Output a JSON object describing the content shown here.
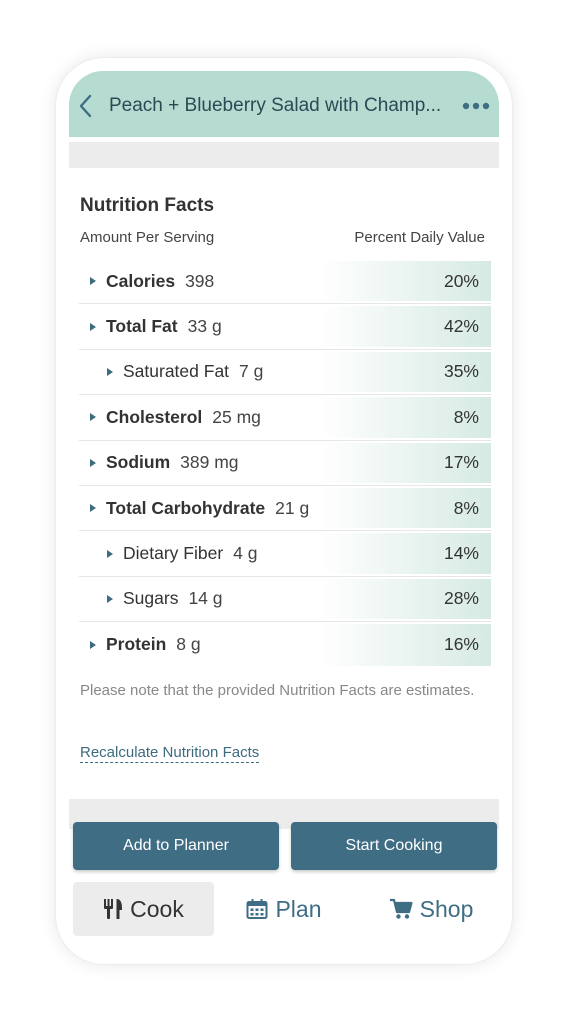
{
  "header": {
    "title": "Peach + Blueberry Salad with Champ...",
    "icons": {
      "back": "chevron-left-icon",
      "more": "more-horizontal-icon"
    }
  },
  "nutrition": {
    "title": "Nutrition Facts",
    "col_left": "Amount Per Serving",
    "col_right": "Percent Daily Value",
    "rows": [
      {
        "label": "Calories",
        "amount": "398",
        "pct": "20%"
      },
      {
        "label": "Total Fat",
        "amount": "33 g",
        "pct": "42%"
      },
      {
        "label": "Saturated Fat",
        "amount": "7 g",
        "pct": "35%"
      },
      {
        "label": "Cholesterol",
        "amount": "25 mg",
        "pct": "8%"
      },
      {
        "label": "Sodium",
        "amount": "389 mg",
        "pct": "17%"
      },
      {
        "label": "Total Carbohydrate",
        "amount": "21 g",
        "pct": "8%"
      },
      {
        "label": "Dietary Fiber",
        "amount": "4 g",
        "pct": "14%"
      },
      {
        "label": "Sugars",
        "amount": "14 g",
        "pct": "28%"
      },
      {
        "label": "Protein",
        "amount": "8 g",
        "pct": "16%"
      }
    ],
    "note": "Please note that the provided Nutrition Facts are estimates.",
    "recalc_link": "Recalculate Nutrition Facts"
  },
  "actions": {
    "add_to_planner": "Add to Planner",
    "start_cooking": "Start Cooking"
  },
  "tabs": {
    "cook": "Cook",
    "plan": "Plan",
    "shop": "Shop",
    "icons": {
      "cook": "utensils-icon",
      "plan": "calendar-icon",
      "shop": "cart-icon"
    }
  },
  "colors": {
    "header_bg": "#b6dcd1",
    "accent": "#3f6d84",
    "row_shade": "#d6eae4",
    "band": "#ececec"
  }
}
